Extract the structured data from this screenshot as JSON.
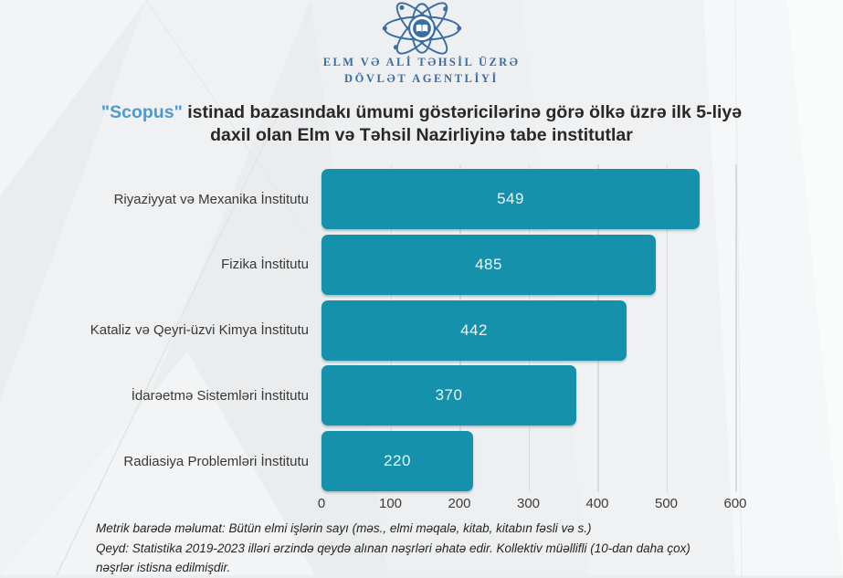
{
  "header": {
    "logo_icon": "atom-book-icon",
    "org_line1": "ELM VƏ ALİ TƏHSİL ÜZRƏ",
    "org_line2": "DÖVLƏT AGENTLİYİ"
  },
  "title": {
    "scopus": "\"Scopus\"",
    "line1_rest": " istinad bazasındakı ümumi göstəricilərinə görə ölkə üzrə ilk 5-liyə",
    "line2": "daxil olan Elm və Təhsil Nazirliyinə tabe institutlar"
  },
  "chart_data": {
    "type": "bar",
    "orientation": "horizontal",
    "title": "\"Scopus\" istinad bazasındakı ümumi göstəricilərinə görə ölkə üzrə ilk 5-liyə daxil olan Elm və Təhsil Nazirliyinə tabe institutlar",
    "categories": [
      "Riyaziyyat və Mexanika İnstitutu",
      "Fizika İnstitutu",
      "Kataliz və Qeyri-üzvi Kimya İnstitutu",
      "İdarəetmə Sistemləri İnstitutu",
      "Radiasiya Problemləri İnstitutu"
    ],
    "values": [
      549,
      485,
      442,
      370,
      220
    ],
    "xlim": [
      0,
      600
    ],
    "xticks": [
      0,
      100,
      200,
      300,
      400,
      500,
      600
    ],
    "grid": true,
    "legend": false,
    "value_labels": "inside-center",
    "bar_color": "#1591ac"
  },
  "footer": {
    "lines": [
      "Metrik barədə məlumat: Bütün elmi işlərin sayı (məs., elmi məqalə, kitab, kitabın fəsli və s.)",
      "Qeyd: Statistika 2019-2023 illəri ərzində qeydə alınan nəşrləri əhatə edir. Kollektiv müəllifli (10-dan daha çox)",
      "nəşrlər istisna edilmişdir."
    ]
  },
  "colors": {
    "bar": "#1591ac",
    "scopus_blue": "#4d9ad3",
    "logo_blue": "#3a6ca6",
    "title_text": "#282828",
    "background": "#ebedee"
  }
}
